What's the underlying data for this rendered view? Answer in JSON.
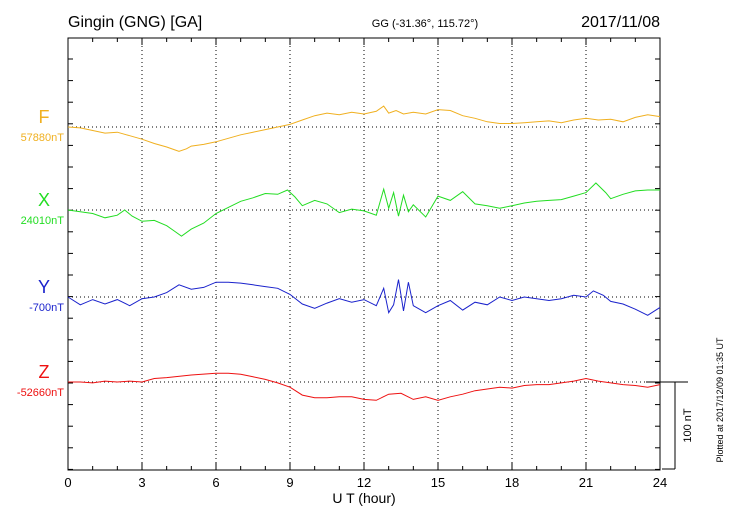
{
  "header": {
    "station": "Gingin (GNG)  [GA]",
    "coords": "GG (-31.36°, 115.72°)",
    "date": "2017/11/08"
  },
  "footer": {
    "plotted": "Plotted at 2017/12/09 01:35 UT"
  },
  "chart_data": {
    "type": "line",
    "xlabel": "U T (hour)",
    "xlim": [
      0,
      24
    ],
    "xticks": [
      "0",
      "3",
      "6",
      "9",
      "12",
      "15",
      "18",
      "21",
      "24"
    ],
    "scale_bar": {
      "label": "100 nT",
      "value_nT": 100
    },
    "grid": true,
    "series": [
      {
        "name": "F",
        "baseline_label": "57880nT",
        "baseline_nT": 57880,
        "color": "#f0b020",
        "points": [
          [
            0,
            57880
          ],
          [
            0.5,
            57879
          ],
          [
            1,
            57876
          ],
          [
            1.5,
            57873
          ],
          [
            2,
            57874
          ],
          [
            2.5,
            57870
          ],
          [
            3,
            57866
          ],
          [
            3.5,
            57861
          ],
          [
            4,
            57857
          ],
          [
            4.3,
            57854
          ],
          [
            4.5,
            57852
          ],
          [
            4.8,
            57855
          ],
          [
            5,
            57858
          ],
          [
            5.5,
            57860
          ],
          [
            6,
            57863
          ],
          [
            6.5,
            57867
          ],
          [
            7,
            57871
          ],
          [
            7.5,
            57874
          ],
          [
            8,
            57877
          ],
          [
            8.5,
            57880
          ],
          [
            9,
            57883
          ],
          [
            9.5,
            57888
          ],
          [
            10,
            57893
          ],
          [
            10.5,
            57896
          ],
          [
            11,
            57894
          ],
          [
            11.5,
            57897
          ],
          [
            12,
            57895
          ],
          [
            12.5,
            57898
          ],
          [
            12.8,
            57904
          ],
          [
            13,
            57896
          ],
          [
            13.3,
            57899
          ],
          [
            13.6,
            57895
          ],
          [
            14,
            57897
          ],
          [
            14.5,
            57895
          ],
          [
            15,
            57900
          ],
          [
            15.5,
            57899
          ],
          [
            16,
            57893
          ],
          [
            16.5,
            57890
          ],
          [
            17,
            57886
          ],
          [
            17.5,
            57884
          ],
          [
            18,
            57884
          ],
          [
            18.5,
            57885
          ],
          [
            19,
            57886
          ],
          [
            19.5,
            57887
          ],
          [
            20,
            57885
          ],
          [
            20.5,
            57888
          ],
          [
            21,
            57890
          ],
          [
            21.5,
            57888
          ],
          [
            22,
            57889
          ],
          [
            22.5,
            57886
          ],
          [
            23,
            57891
          ],
          [
            23.5,
            57894
          ],
          [
            24,
            57892
          ]
        ]
      },
      {
        "name": "X",
        "baseline_label": "24010nT",
        "baseline_nT": 24010,
        "color": "#22dd22",
        "points": [
          [
            0,
            24010
          ],
          [
            0.5,
            24008
          ],
          [
            1,
            24006
          ],
          [
            1.5,
            24001
          ],
          [
            2,
            24004
          ],
          [
            2.3,
            24010
          ],
          [
            2.6,
            24003
          ],
          [
            3,
            23997
          ],
          [
            3.5,
            23998
          ],
          [
            4,
            23992
          ],
          [
            4.3,
            23986
          ],
          [
            4.6,
            23980
          ],
          [
            5,
            23988
          ],
          [
            5.5,
            23995
          ],
          [
            6,
            24006
          ],
          [
            6.5,
            24013
          ],
          [
            7,
            24020
          ],
          [
            7.5,
            24024
          ],
          [
            8,
            24029
          ],
          [
            8.5,
            24028
          ],
          [
            8.9,
            24033
          ],
          [
            9.2,
            24025
          ],
          [
            9.5,
            24015
          ],
          [
            10,
            24021
          ],
          [
            10.5,
            24017
          ],
          [
            11,
            24007
          ],
          [
            11.5,
            24011
          ],
          [
            12,
            24009
          ],
          [
            12.5,
            24004
          ],
          [
            12.8,
            24034
          ],
          [
            13,
            24012
          ],
          [
            13.2,
            24030
          ],
          [
            13.4,
            24003
          ],
          [
            13.6,
            24027
          ],
          [
            13.8,
            24008
          ],
          [
            14,
            24016
          ],
          [
            14.5,
            24002
          ],
          [
            15,
            24026
          ],
          [
            15.5,
            24021
          ],
          [
            16,
            24031
          ],
          [
            16.5,
            24017
          ],
          [
            17,
            24015
          ],
          [
            17.5,
            24012
          ],
          [
            18,
            24015
          ],
          [
            18.5,
            24018
          ],
          [
            19,
            24020
          ],
          [
            19.5,
            24021
          ],
          [
            20,
            24022
          ],
          [
            20.5,
            24026
          ],
          [
            21,
            24030
          ],
          [
            21.4,
            24041
          ],
          [
            21.8,
            24030
          ],
          [
            22,
            24023
          ],
          [
            22.5,
            24028
          ],
          [
            23,
            24032
          ],
          [
            23.5,
            24033
          ],
          [
            24,
            24033
          ]
        ]
      },
      {
        "name": "Y",
        "baseline_label": "-700nT",
        "baseline_nT": -700,
        "color": "#1a22cc",
        "points": [
          [
            0,
            -700
          ],
          [
            0.5,
            -709
          ],
          [
            1,
            -703
          ],
          [
            1.5,
            -708
          ],
          [
            2,
            -703
          ],
          [
            2.5,
            -710
          ],
          [
            3,
            -702
          ],
          [
            3.5,
            -700
          ],
          [
            4,
            -695
          ],
          [
            4.5,
            -686
          ],
          [
            5,
            -691
          ],
          [
            5.5,
            -689
          ],
          [
            6,
            -683
          ],
          [
            6.5,
            -683
          ],
          [
            7,
            -684
          ],
          [
            7.5,
            -686
          ],
          [
            8,
            -688
          ],
          [
            8.5,
            -690
          ],
          [
            9,
            -697
          ],
          [
            9.5,
            -708
          ],
          [
            10,
            -713
          ],
          [
            10.5,
            -707
          ],
          [
            11,
            -702
          ],
          [
            11.5,
            -706
          ],
          [
            12,
            -703
          ],
          [
            12.5,
            -710
          ],
          [
            12.8,
            -690
          ],
          [
            13,
            -718
          ],
          [
            13.2,
            -709
          ],
          [
            13.4,
            -680
          ],
          [
            13.6,
            -716
          ],
          [
            13.8,
            -683
          ],
          [
            14,
            -710
          ],
          [
            14.5,
            -718
          ],
          [
            15,
            -710
          ],
          [
            15.5,
            -704
          ],
          [
            16,
            -715
          ],
          [
            16.5,
            -706
          ],
          [
            17,
            -709
          ],
          [
            17.5,
            -700
          ],
          [
            18,
            -704
          ],
          [
            18.5,
            -700
          ],
          [
            19,
            -702
          ],
          [
            19.5,
            -704
          ],
          [
            20,
            -702
          ],
          [
            20.5,
            -698
          ],
          [
            21,
            -700
          ],
          [
            21.3,
            -693
          ],
          [
            21.7,
            -698
          ],
          [
            22,
            -705
          ],
          [
            22.5,
            -708
          ],
          [
            23,
            -714
          ],
          [
            23.5,
            -721
          ],
          [
            24,
            -712
          ]
        ]
      },
      {
        "name": "Z",
        "baseline_label": "-52660nT",
        "baseline_nT": -52660,
        "color": "#ee1111",
        "points": [
          [
            0,
            -52660
          ],
          [
            0.5,
            -52660
          ],
          [
            1,
            -52661
          ],
          [
            1.5,
            -52659
          ],
          [
            2,
            -52660
          ],
          [
            2.5,
            -52659
          ],
          [
            3,
            -52660
          ],
          [
            3.5,
            -52656
          ],
          [
            4,
            -52655
          ],
          [
            5,
            -52652
          ],
          [
            6,
            -52650
          ],
          [
            6.5,
            -52650
          ],
          [
            7,
            -52651
          ],
          [
            7.5,
            -52654
          ],
          [
            8,
            -52657
          ],
          [
            8.5,
            -52661
          ],
          [
            9,
            -52666
          ],
          [
            9.5,
            -52675
          ],
          [
            10,
            -52678
          ],
          [
            10.5,
            -52678
          ],
          [
            11,
            -52677
          ],
          [
            11.5,
            -52677
          ],
          [
            12,
            -52680
          ],
          [
            12.5,
            -52681
          ],
          [
            13,
            -52674
          ],
          [
            13.5,
            -52673
          ],
          [
            14,
            -52680
          ],
          [
            14.5,
            -52677
          ],
          [
            15,
            -52681
          ],
          [
            15.5,
            -52677
          ],
          [
            16,
            -52674
          ],
          [
            16.5,
            -52670
          ],
          [
            17,
            -52668
          ],
          [
            17.5,
            -52666
          ],
          [
            18,
            -52667
          ],
          [
            18.5,
            -52664
          ],
          [
            19,
            -52663
          ],
          [
            19.5,
            -52663
          ],
          [
            20,
            -52661
          ],
          [
            20.5,
            -52659
          ],
          [
            21,
            -52656
          ],
          [
            21.5,
            -52659
          ],
          [
            22,
            -52661
          ],
          [
            22.5,
            -52663
          ],
          [
            23,
            -52664
          ],
          [
            23.5,
            -52666
          ],
          [
            24,
            -52663
          ]
        ]
      }
    ]
  }
}
